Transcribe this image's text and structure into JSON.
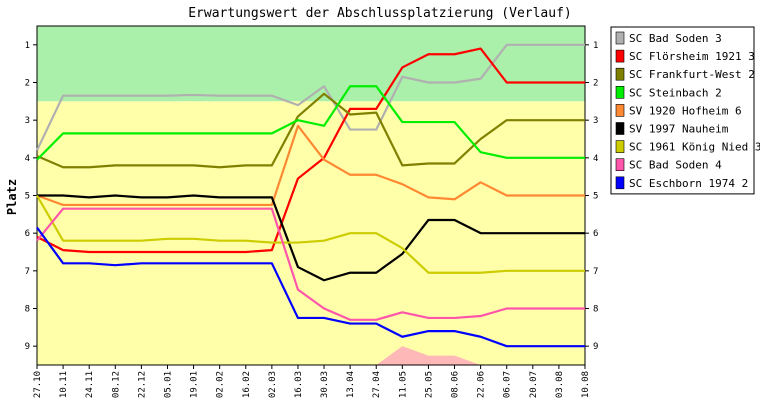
{
  "chart_data": {
    "type": "line",
    "title": "Erwartungswert der Abschlussplatzierung (Verlauf)",
    "ylabel": "Platz",
    "ylim": [
      0.5,
      9.5
    ],
    "y_inverted": true,
    "yticks": [
      1,
      2,
      3,
      4,
      5,
      6,
      7,
      8,
      9
    ],
    "categories": [
      "27.10",
      "10.11",
      "24.11",
      "08.12",
      "22.12",
      "05.01",
      "19.01",
      "02.02",
      "16.02",
      "02.03",
      "16.03",
      "30.03",
      "13.04",
      "27.04",
      "11.05",
      "25.05",
      "08.06",
      "22.06",
      "06.07",
      "20.07",
      "03.08",
      "10.08"
    ],
    "bands": [
      {
        "from": 0.5,
        "to": 2.5,
        "color": "#aaf0aa"
      },
      {
        "from": 2.5,
        "to": 9.5,
        "color": "#ffffaa"
      }
    ],
    "series": [
      {
        "name": "SC Bad Soden 3",
        "color": "#b0b0b0",
        "values": [
          3.8,
          2.35,
          2.35,
          2.35,
          2.35,
          2.35,
          2.33,
          2.35,
          2.35,
          2.35,
          2.6,
          2.1,
          3.25,
          3.25,
          1.85,
          2.0,
          2.0,
          1.9,
          1.0,
          1.0,
          1.0,
          1.0
        ]
      },
      {
        "name": "SC Flörsheim 1921 3",
        "color": "#ff0000",
        "values": [
          6.1,
          6.45,
          6.5,
          6.5,
          6.5,
          6.5,
          6.5,
          6.5,
          6.5,
          6.45,
          4.55,
          4.0,
          2.7,
          2.7,
          1.6,
          1.25,
          1.25,
          1.1,
          2.0,
          2.0,
          2.0,
          2.0
        ]
      },
      {
        "name": "SC Frankfurt-West 2",
        "color": "#808000",
        "values": [
          3.95,
          4.25,
          4.25,
          4.2,
          4.2,
          4.2,
          4.2,
          4.25,
          4.2,
          4.2,
          2.9,
          2.3,
          2.85,
          2.8,
          4.2,
          4.15,
          4.15,
          3.5,
          3.0,
          3.0,
          3.0,
          3.0
        ]
      },
      {
        "name": "SC Steinbach 2",
        "color": "#00ee00",
        "values": [
          4.05,
          3.35,
          3.35,
          3.35,
          3.35,
          3.35,
          3.35,
          3.35,
          3.35,
          3.35,
          3.0,
          3.15,
          2.1,
          2.1,
          3.05,
          3.05,
          3.05,
          3.85,
          4.0,
          4.0,
          4.0,
          4.0
        ]
      },
      {
        "name": "SV 1920 Hofheim 6",
        "color": "#ff8833",
        "values": [
          5.0,
          5.25,
          5.25,
          5.25,
          5.25,
          5.25,
          5.25,
          5.25,
          5.25,
          5.25,
          3.15,
          4.05,
          4.45,
          4.45,
          4.7,
          5.05,
          5.1,
          4.65,
          5.0,
          5.0,
          5.0,
          5.0
        ]
      },
      {
        "name": "SV 1997 Nauheim",
        "color": "#000000",
        "values": [
          5.0,
          5.0,
          5.05,
          5.0,
          5.05,
          5.05,
          5.0,
          5.05,
          5.05,
          5.05,
          6.9,
          7.25,
          7.05,
          7.05,
          6.55,
          5.65,
          5.65,
          6.0,
          6.0,
          6.0,
          6.0,
          6.0
        ]
      },
      {
        "name": "SC 1961 König Nied 3",
        "color": "#cccc00",
        "values": [
          5.0,
          6.2,
          6.2,
          6.2,
          6.2,
          6.15,
          6.15,
          6.2,
          6.2,
          6.25,
          6.25,
          6.2,
          6.0,
          6.0,
          6.4,
          7.05,
          7.05,
          7.05,
          7.0,
          7.0,
          7.0,
          7.0
        ]
      },
      {
        "name": "SC Bad Soden 4",
        "color": "#ff55aa",
        "values": [
          6.2,
          5.35,
          5.35,
          5.35,
          5.35,
          5.35,
          5.35,
          5.35,
          5.35,
          5.35,
          7.5,
          8.0,
          8.3,
          8.3,
          8.1,
          8.25,
          8.25,
          8.2,
          8.0,
          8.0,
          8.0,
          8.0
        ]
      },
      {
        "name": "SC Eschborn 1974 2",
        "color": "#0000ff",
        "values": [
          5.85,
          6.8,
          6.8,
          6.85,
          6.8,
          6.8,
          6.8,
          6.8,
          6.8,
          6.8,
          8.25,
          8.25,
          8.4,
          8.4,
          8.75,
          8.6,
          8.6,
          8.75,
          9.0,
          9.0,
          9.0,
          9.0
        ]
      }
    ],
    "area": {
      "color": "#ffb8b8",
      "values": [
        9.5,
        9.5,
        9.5,
        9.5,
        9.5,
        9.5,
        9.5,
        9.5,
        9.5,
        9.5,
        9.5,
        9.5,
        9.5,
        9.5,
        9.0,
        9.25,
        9.25,
        9.5,
        9.5,
        9.5,
        9.5,
        9.5
      ]
    }
  }
}
